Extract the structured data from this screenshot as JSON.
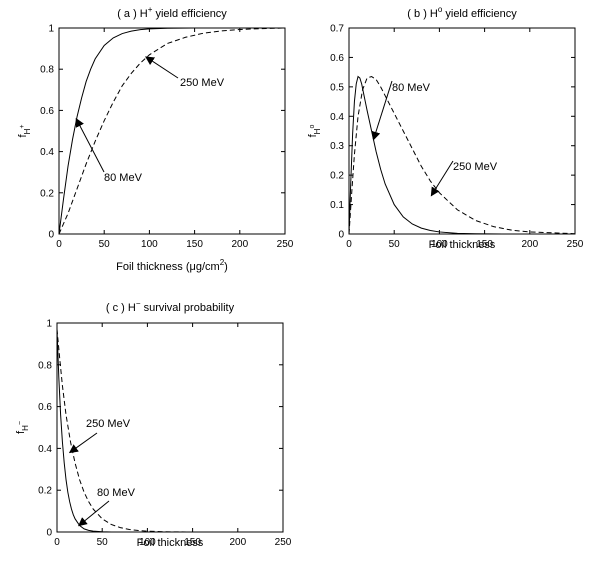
{
  "chart_data": [
    {
      "id": "a",
      "type": "line",
      "title_parts": [
        "( a ) H",
        "+",
        " yield efficiency"
      ],
      "ylabel_parts": [
        "f",
        "H",
        "+"
      ],
      "xlabel_parts": [
        "Foil thickness (",
        "μg/cm",
        "2",
        ")"
      ],
      "xlim": [
        0,
        250
      ],
      "ylim": [
        0,
        1
      ],
      "xticks": [
        0,
        50,
        100,
        150,
        200,
        250
      ],
      "yticks": [
        0,
        0.2,
        0.4,
        0.6,
        0.8,
        1
      ],
      "ytick_labels": [
        "0",
        "0.2",
        "0.4",
        "0.6",
        "0.8",
        "1"
      ],
      "series": [
        {
          "style": "solid",
          "label": "80 MeV",
          "x": [
            0,
            5,
            10,
            15,
            20,
            25,
            30,
            35,
            40,
            50,
            60,
            70,
            80,
            90,
            100,
            120,
            150,
            200,
            250
          ],
          "y": [
            0,
            0.17,
            0.33,
            0.46,
            0.57,
            0.66,
            0.74,
            0.8,
            0.85,
            0.915,
            0.952,
            0.973,
            0.985,
            0.992,
            0.996,
            0.999,
            1,
            1,
            1
          ]
        },
        {
          "style": "dashed",
          "label": "250 MeV",
          "x": [
            0,
            10,
            20,
            30,
            40,
            50,
            60,
            70,
            80,
            90,
            100,
            120,
            140,
            160,
            180,
            200,
            225,
            250
          ],
          "y": [
            0,
            0.1,
            0.22,
            0.34,
            0.45,
            0.55,
            0.64,
            0.72,
            0.78,
            0.83,
            0.87,
            0.925,
            0.955,
            0.975,
            0.986,
            0.993,
            0.997,
            1.0
          ]
        }
      ],
      "annotations": [
        {
          "text": "250 MeV",
          "tip": [
            96,
            0.86
          ]
        },
        {
          "text": "80 MeV",
          "tip": [
            19,
            0.56
          ]
        }
      ]
    },
    {
      "id": "b",
      "type": "line",
      "title_parts": [
        "( b ) H",
        "o",
        " yield efficiency"
      ],
      "ylabel_parts": [
        "f",
        "H",
        "o"
      ],
      "xlabel_parts": [
        "Foil thickness"
      ],
      "xlim": [
        0,
        250
      ],
      "ylim": [
        0,
        0.7
      ],
      "xticks": [
        0,
        50,
        100,
        150,
        200,
        250
      ],
      "yticks": [
        0,
        0.1,
        0.2,
        0.3,
        0.4,
        0.5,
        0.6,
        0.7
      ],
      "ytick_labels": [
        "0",
        "0.1",
        "0.2",
        "0.3",
        "0.4",
        "0.5",
        "0.6",
        "0.7"
      ],
      "series": [
        {
          "style": "solid",
          "label": "80 MeV",
          "x": [
            0,
            2,
            4,
            6,
            8,
            10,
            12,
            14,
            16,
            18,
            20,
            25,
            30,
            35,
            40,
            50,
            60,
            70,
            80,
            90,
            100,
            120,
            140,
            170,
            200,
            250
          ],
          "y": [
            0,
            0.18,
            0.34,
            0.45,
            0.51,
            0.535,
            0.53,
            0.51,
            0.48,
            0.45,
            0.42,
            0.35,
            0.28,
            0.22,
            0.17,
            0.1,
            0.058,
            0.034,
            0.02,
            0.012,
            0.007,
            0.002,
            0.001,
            0,
            0,
            0
          ]
        },
        {
          "style": "dashed",
          "label": "250 MeV",
          "x": [
            0,
            3,
            6,
            10,
            15,
            20,
            25,
            30,
            35,
            40,
            50,
            60,
            70,
            80,
            90,
            100,
            120,
            140,
            160,
            180,
            200,
            250
          ],
          "y": [
            0,
            0.14,
            0.27,
            0.4,
            0.49,
            0.53,
            0.535,
            0.525,
            0.5,
            0.47,
            0.41,
            0.35,
            0.29,
            0.23,
            0.18,
            0.14,
            0.082,
            0.046,
            0.025,
            0.013,
            0.007,
            0.001
          ]
        }
      ],
      "annotations": [
        {
          "text": "80 MeV",
          "tip": [
            27,
            0.32
          ]
        },
        {
          "text": "250 MeV",
          "tip": [
            91,
            0.13
          ]
        }
      ]
    },
    {
      "id": "c",
      "type": "line",
      "title_parts": [
        "( c ) H",
        "−",
        " survival probability"
      ],
      "ylabel_parts": [
        "f",
        "H",
        "−"
      ],
      "xlabel_parts": [
        "Foil thickness"
      ],
      "xlim": [
        0,
        250
      ],
      "ylim": [
        0,
        1
      ],
      "xticks": [
        0,
        50,
        100,
        150,
        200,
        250
      ],
      "yticks": [
        0,
        0.2,
        0.4,
        0.6,
        0.8,
        1
      ],
      "ytick_labels": [
        "0",
        "0.2",
        "0.4",
        "0.6",
        "0.8",
        "1"
      ],
      "series": [
        {
          "style": "solid",
          "label": "80 MeV",
          "x": [
            0,
            2,
            4,
            6,
            8,
            10,
            12,
            14,
            16,
            18,
            20,
            25,
            30,
            35,
            40,
            50,
            60,
            80,
            100,
            250
          ],
          "y": [
            0.97,
            0.74,
            0.56,
            0.43,
            0.33,
            0.25,
            0.19,
            0.145,
            0.11,
            0.083,
            0.063,
            0.031,
            0.015,
            0.008,
            0.004,
            0.001,
            0,
            0,
            0,
            0
          ]
        },
        {
          "style": "dashed",
          "label": "250 MeV",
          "x": [
            0,
            3,
            6,
            10,
            15,
            20,
            25,
            30,
            35,
            40,
            50,
            60,
            70,
            80,
            90,
            100,
            120,
            150,
            250
          ],
          "y": [
            0.97,
            0.83,
            0.7,
            0.56,
            0.43,
            0.33,
            0.25,
            0.19,
            0.145,
            0.11,
            0.063,
            0.036,
            0.021,
            0.012,
            0.007,
            0.004,
            0.001,
            0,
            0
          ]
        }
      ],
      "annotations": [
        {
          "text": "250 MeV",
          "tip": [
            14,
            0.38
          ]
        },
        {
          "text": "80 MeV",
          "tip": [
            24,
            0.03
          ]
        }
      ]
    }
  ]
}
